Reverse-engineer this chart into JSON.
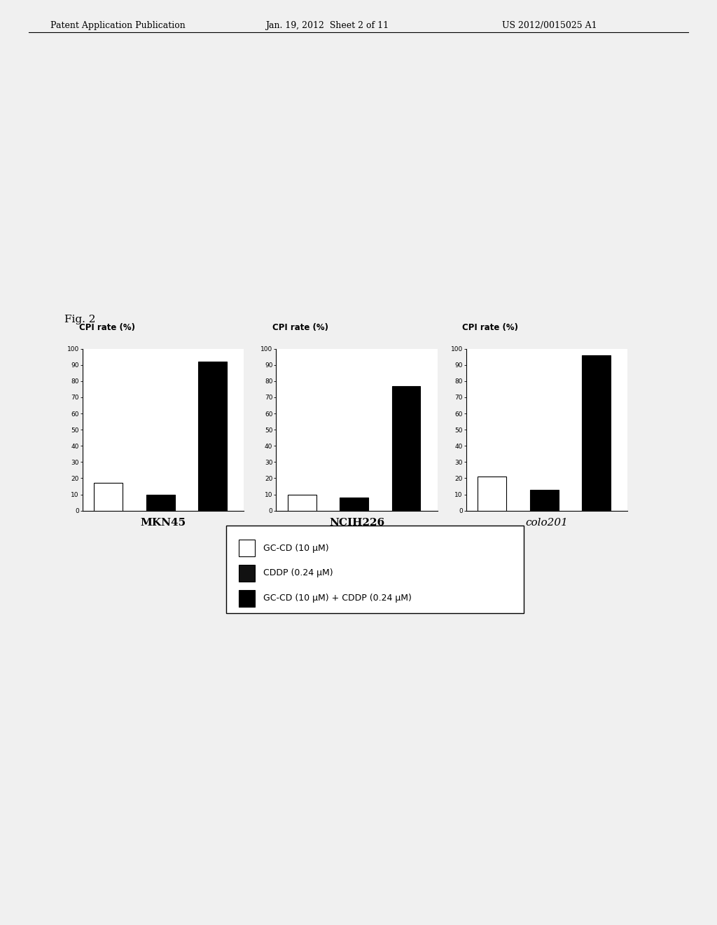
{
  "fig_label": "Fig. 2",
  "header_left": "Patent Application Publication",
  "header_mid": "Jan. 19, 2012  Sheet 2 of 11",
  "header_right": "US 2012/0015025 A1",
  "subplots": [
    {
      "title": "MKN45",
      "title_style": "bold",
      "ylabel": "CPI rate (%)",
      "ylim": [
        0,
        100
      ],
      "yticks": [
        0,
        10,
        20,
        30,
        40,
        50,
        60,
        70,
        80,
        90,
        100
      ],
      "bars": [
        {
          "label": "GC-CD",
          "value": 17,
          "color": "white",
          "edgecolor": "black"
        },
        {
          "label": "CDDP",
          "value": 10,
          "color": "black",
          "edgecolor": "black"
        },
        {
          "label": "GC-CD+CDDP",
          "value": 92,
          "color": "black",
          "edgecolor": "black"
        }
      ]
    },
    {
      "title": "NCIH226",
      "title_style": "bold",
      "ylabel": "CPI rate (%)",
      "ylim": [
        0,
        100
      ],
      "yticks": [
        0,
        10,
        20,
        30,
        40,
        50,
        60,
        70,
        80,
        90,
        100
      ],
      "bars": [
        {
          "label": "GC-CD",
          "value": 10,
          "color": "white",
          "edgecolor": "black"
        },
        {
          "label": "CDDP",
          "value": 8,
          "color": "black",
          "edgecolor": "black"
        },
        {
          "label": "GC-CD+CDDP",
          "value": 77,
          "color": "black",
          "edgecolor": "black"
        }
      ]
    },
    {
      "title": "colo201",
      "title_style": "italic",
      "ylabel": "CPI rate (%)",
      "ylim": [
        0,
        100
      ],
      "yticks": [
        0,
        10,
        20,
        30,
        40,
        50,
        60,
        70,
        80,
        90,
        100
      ],
      "bars": [
        {
          "label": "GC-CD",
          "value": 21,
          "color": "white",
          "edgecolor": "black"
        },
        {
          "label": "CDDP",
          "value": 13,
          "color": "black",
          "edgecolor": "black"
        },
        {
          "label": "GC-CD+CDDP",
          "value": 96,
          "color": "black",
          "edgecolor": "black"
        }
      ]
    }
  ],
  "legend": [
    {
      "label": "GC-CD (10 μM)",
      "color": "white",
      "edgecolor": "black"
    },
    {
      "label": "CDDP (0.24 μM)",
      "color": "#111111",
      "edgecolor": "black"
    },
    {
      "label": "GC-CD (10 μM) + CDDP (0.24 μM)",
      "color": "black",
      "edgecolor": "black"
    }
  ],
  "background_color": "#f0f0f0",
  "plot_area_color": "#ffffff"
}
